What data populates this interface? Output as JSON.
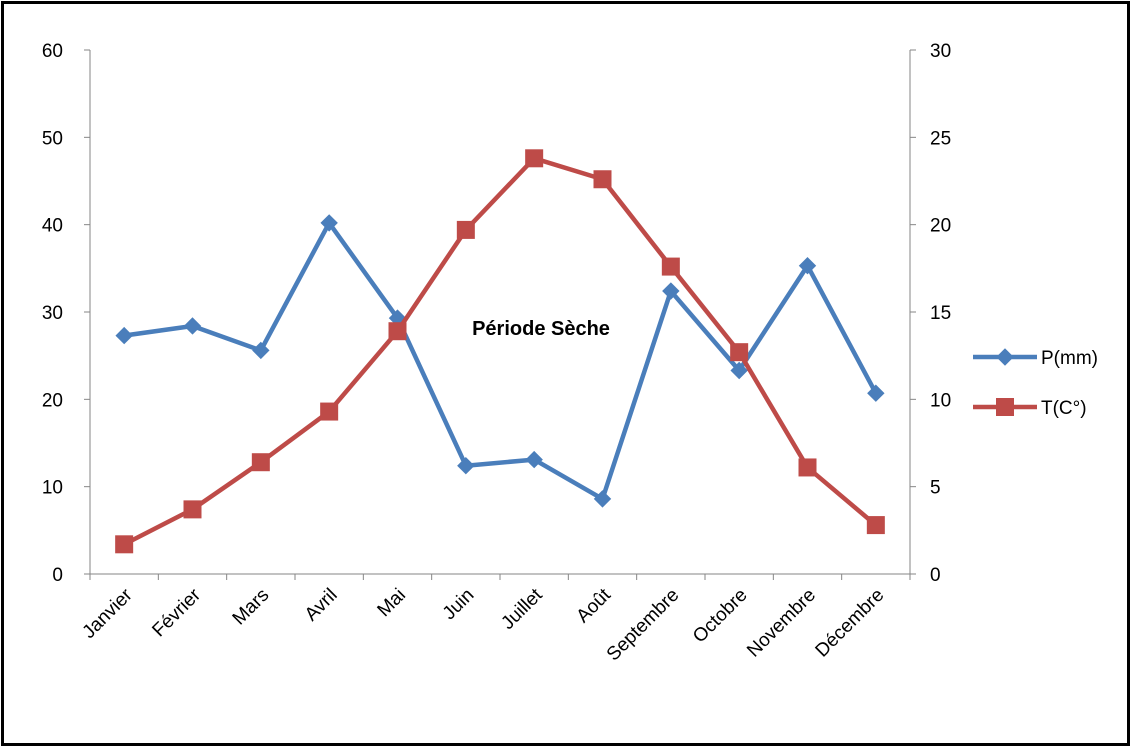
{
  "chart_data": {
    "type": "line",
    "categories": [
      "Janvier",
      "Février",
      "Mars",
      "Avril",
      "Mai",
      "Juin",
      "Juillet",
      "Août",
      "Septembre",
      "Octobre",
      "Novembre",
      "Décembre"
    ],
    "series": [
      {
        "name": "P(mm)",
        "axis": "left",
        "marker": "diamond",
        "color": "#4A7EBB",
        "values": [
          27.3,
          28.4,
          25.6,
          40.2,
          29.3,
          12.4,
          13.1,
          8.6,
          32.4,
          23.3,
          35.3,
          20.7
        ]
      },
      {
        "name": "T(C°)",
        "axis": "right",
        "marker": "square",
        "color": "#BE4B48",
        "values": [
          1.7,
          3.7,
          6.4,
          9.3,
          13.9,
          19.7,
          23.8,
          22.6,
          17.6,
          12.7,
          6.1,
          2.8
        ]
      }
    ],
    "y_left": {
      "min": 0,
      "max": 60,
      "ticks": [
        0,
        10,
        20,
        30,
        40,
        50,
        60
      ]
    },
    "y_right": {
      "min": 0,
      "max": 30,
      "ticks": [
        0,
        5,
        10,
        15,
        20,
        25,
        30
      ]
    },
    "annotation": "Période Sèche",
    "legend_position": "right",
    "grid": false
  }
}
